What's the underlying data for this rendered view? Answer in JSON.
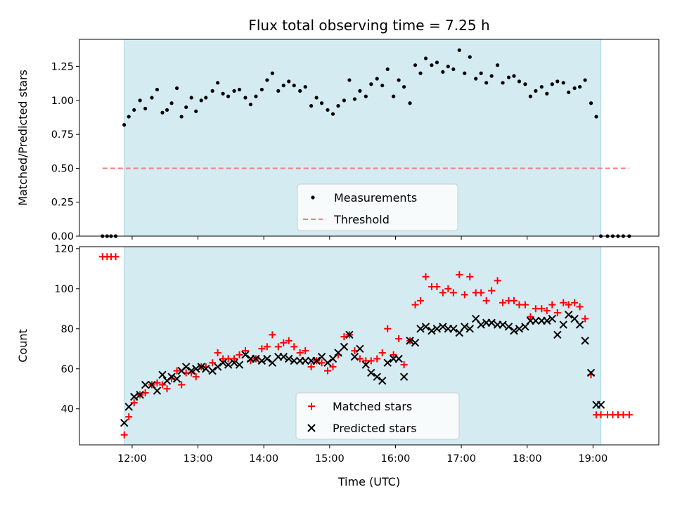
{
  "title": "Flux total observing time = 7.25 h",
  "chart_data": [
    {
      "type": "scatter",
      "ylabel": "Matched/Predicted stars",
      "ylim": [
        0,
        1.45
      ],
      "yticks": [
        "0.00",
        "0.25",
        "0.50",
        "0.75",
        "1.00",
        "1.25"
      ],
      "ytick_values": [
        0,
        0.25,
        0.5,
        0.75,
        1.0,
        1.25
      ],
      "xlim": [
        11.2,
        20.0
      ],
      "grid": false,
      "legend_location": "lower center",
      "observing_window": [
        11.88,
        19.12
      ],
      "window_color": "#d4ebf1",
      "threshold": {
        "name": "Threshold",
        "y": 0.5,
        "x_range": [
          11.55,
          19.55
        ],
        "color": "#f08080",
        "style": "dashed"
      },
      "series": [
        {
          "name": "Measurements",
          "color": "#000000",
          "marker": "dot",
          "x": [
            11.55,
            11.62,
            11.68,
            11.75,
            11.88,
            11.95,
            12.03,
            12.12,
            12.2,
            12.3,
            12.38,
            12.46,
            12.53,
            12.6,
            12.68,
            12.75,
            12.82,
            12.9,
            12.97,
            13.05,
            13.12,
            13.22,
            13.3,
            13.38,
            13.46,
            13.55,
            13.63,
            13.72,
            13.8,
            13.88,
            13.97,
            14.05,
            14.13,
            14.22,
            14.3,
            14.38,
            14.46,
            14.55,
            14.63,
            14.72,
            14.8,
            14.88,
            14.97,
            15.05,
            15.13,
            15.22,
            15.3,
            15.38,
            15.46,
            15.55,
            15.63,
            15.72,
            15.8,
            15.88,
            15.97,
            16.05,
            16.13,
            16.22,
            16.3,
            16.38,
            16.46,
            16.55,
            16.63,
            16.72,
            16.8,
            16.88,
            16.97,
            17.05,
            17.13,
            17.22,
            17.3,
            17.38,
            17.46,
            17.55,
            17.63,
            17.72,
            17.8,
            17.88,
            17.97,
            18.05,
            18.13,
            18.22,
            18.3,
            18.38,
            18.46,
            18.55,
            18.63,
            18.72,
            18.8,
            18.88,
            18.97,
            19.05,
            19.12,
            19.22,
            19.3,
            19.38,
            19.46,
            19.55
          ],
          "y": [
            0,
            0,
            0,
            0,
            0.82,
            0.88,
            0.93,
            1.0,
            0.94,
            1.02,
            1.08,
            0.91,
            0.93,
            0.98,
            1.09,
            0.88,
            0.95,
            1.02,
            0.92,
            1.0,
            1.02,
            1.07,
            1.13,
            1.05,
            1.03,
            1.07,
            1.08,
            1.02,
            0.97,
            1.03,
            1.08,
            1.15,
            1.2,
            1.07,
            1.11,
            1.14,
            1.11,
            1.07,
            1.1,
            0.96,
            1.02,
            0.98,
            0.93,
            0.9,
            0.96,
            1.0,
            1.15,
            1.01,
            1.07,
            1.03,
            1.12,
            1.16,
            1.11,
            1.23,
            1.03,
            1.15,
            1.1,
            0.98,
            1.26,
            1.2,
            1.31,
            1.26,
            1.28,
            1.21,
            1.25,
            1.23,
            1.37,
            1.2,
            1.32,
            1.16,
            1.2,
            1.13,
            1.18,
            1.26,
            1.13,
            1.17,
            1.18,
            1.14,
            1.12,
            1.03,
            1.07,
            1.1,
            1.05,
            1.12,
            1.14,
            1.13,
            1.06,
            1.09,
            1.1,
            1.15,
            0.98,
            0.88,
            0,
            0,
            0,
            0,
            0,
            0
          ]
        }
      ]
    },
    {
      "type": "scatter",
      "xlabel": "Time (UTC)",
      "ylabel": "Count",
      "ylim": [
        22,
        121
      ],
      "yticks": [
        "40",
        "60",
        "80",
        "100",
        "120"
      ],
      "ytick_values": [
        40,
        60,
        80,
        100,
        120
      ],
      "xlim": [
        11.2,
        20.0
      ],
      "xticks": [
        "12:00",
        "13:00",
        "14:00",
        "15:00",
        "16:00",
        "17:00",
        "18:00",
        "19:00"
      ],
      "xtick_values": [
        12,
        13,
        14,
        15,
        16,
        17,
        18,
        19
      ],
      "grid": false,
      "legend_location": "lower center",
      "observing_window": [
        11.88,
        19.12
      ],
      "window_color": "#d4ebf1",
      "series": [
        {
          "name": "Matched stars",
          "color": "#ff0000",
          "marker": "plus",
          "x": [
            11.55,
            11.62,
            11.68,
            11.75,
            11.88,
            11.95,
            12.03,
            12.12,
            12.2,
            12.3,
            12.38,
            12.46,
            12.53,
            12.6,
            12.68,
            12.75,
            12.82,
            12.9,
            12.97,
            13.05,
            13.12,
            13.22,
            13.3,
            13.38,
            13.46,
            13.55,
            13.63,
            13.72,
            13.8,
            13.88,
            13.97,
            14.05,
            14.13,
            14.22,
            14.3,
            14.38,
            14.46,
            14.55,
            14.63,
            14.72,
            14.8,
            14.88,
            14.97,
            15.05,
            15.13,
            15.22,
            15.3,
            15.38,
            15.46,
            15.55,
            15.63,
            15.72,
            15.8,
            15.88,
            15.97,
            16.05,
            16.13,
            16.22,
            16.3,
            16.38,
            16.46,
            16.55,
            16.63,
            16.72,
            16.8,
            16.88,
            16.97,
            17.05,
            17.13,
            17.22,
            17.3,
            17.38,
            17.46,
            17.55,
            17.63,
            17.72,
            17.8,
            17.88,
            17.97,
            18.05,
            18.13,
            18.22,
            18.3,
            18.38,
            18.46,
            18.55,
            18.63,
            18.72,
            18.8,
            18.88,
            18.97,
            19.05,
            19.12,
            19.22,
            19.3,
            19.38,
            19.46,
            19.55
          ],
          "y": [
            116,
            116,
            116,
            116,
            27,
            36,
            43,
            47,
            48,
            52,
            53,
            52,
            50,
            55,
            59,
            52,
            58,
            58,
            56,
            61,
            61,
            63,
            68,
            65,
            65,
            65,
            67,
            69,
            64,
            65,
            70,
            71,
            77,
            71,
            73,
            74,
            71,
            68,
            69,
            61,
            64,
            63,
            59,
            61,
            67,
            76,
            77,
            69,
            65,
            64,
            64,
            65,
            68,
            80,
            67,
            75,
            62,
            74,
            92,
            94,
            106,
            101,
            101,
            98,
            100,
            98,
            107,
            97,
            106,
            98,
            98,
            94,
            99,
            104,
            93,
            94,
            94,
            92,
            92,
            86,
            90,
            90,
            89,
            92,
            88,
            93,
            92,
            93,
            91,
            85,
            57,
            37,
            37,
            37,
            37,
            37,
            37,
            37
          ]
        },
        {
          "name": "Predicted stars",
          "color": "#000000",
          "marker": "x",
          "x": [
            11.88,
            11.95,
            12.03,
            12.12,
            12.2,
            12.3,
            12.38,
            12.46,
            12.53,
            12.6,
            12.68,
            12.75,
            12.82,
            12.9,
            12.97,
            13.05,
            13.12,
            13.22,
            13.3,
            13.38,
            13.46,
            13.55,
            13.63,
            13.72,
            13.8,
            13.88,
            13.97,
            14.05,
            14.13,
            14.22,
            14.3,
            14.38,
            14.46,
            14.55,
            14.63,
            14.72,
            14.8,
            14.88,
            14.97,
            15.05,
            15.13,
            15.22,
            15.3,
            15.38,
            15.46,
            15.55,
            15.63,
            15.72,
            15.8,
            15.88,
            15.97,
            16.05,
            16.13,
            16.22,
            16.3,
            16.38,
            16.46,
            16.55,
            16.63,
            16.72,
            16.8,
            16.88,
            16.97,
            17.05,
            17.13,
            17.22,
            17.3,
            17.38,
            17.46,
            17.55,
            17.63,
            17.72,
            17.8,
            17.88,
            17.97,
            18.05,
            18.13,
            18.22,
            18.3,
            18.38,
            18.46,
            18.55,
            18.63,
            18.72,
            18.8,
            18.88,
            18.97,
            19.05,
            19.12
          ],
          "y": [
            33,
            41,
            46,
            47,
            52,
            52,
            49,
            57,
            54,
            56,
            55,
            59,
            61,
            59,
            60,
            61,
            60,
            59,
            61,
            63,
            62,
            63,
            62,
            67,
            65,
            65,
            64,
            65,
            63,
            66,
            66,
            65,
            64,
            64,
            64,
            64,
            64,
            66,
            63,
            65,
            68,
            71,
            77,
            66,
            70,
            62,
            58,
            56,
            54,
            63,
            65,
            65,
            56,
            74,
            73,
            80,
            81,
            79,
            80,
            81,
            80,
            80,
            78,
            81,
            80,
            85,
            82,
            83,
            83,
            82,
            82,
            81,
            79,
            80,
            81,
            84,
            84,
            84,
            84,
            85,
            77,
            82,
            87,
            85,
            82,
            74,
            58,
            42,
            42
          ]
        }
      ]
    }
  ]
}
